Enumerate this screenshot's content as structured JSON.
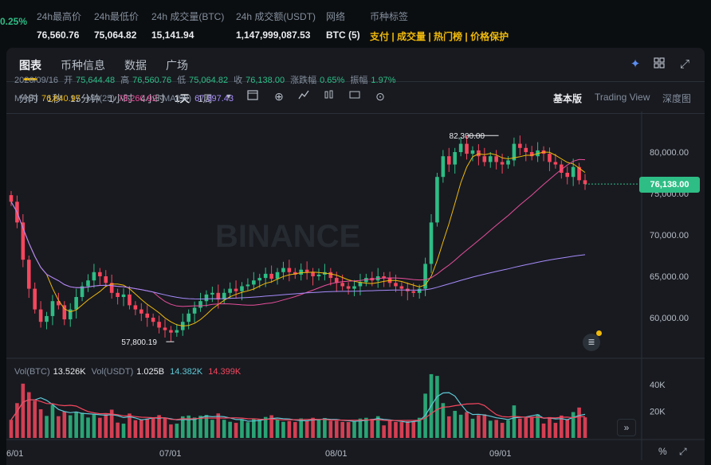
{
  "stats": [
    {
      "label": "",
      "value": "0.25%",
      "color": "green"
    },
    {
      "label": "24h最高价",
      "value": "76,560.76"
    },
    {
      "label": "24h最低价",
      "value": "75,064.82"
    },
    {
      "label": "24h 成交量(BTC)",
      "value": "15,141.94"
    },
    {
      "label": "24h 成交额(USDT)",
      "value": "1,147,999,087.53"
    },
    {
      "label": "网络",
      "value": "BTC (5)"
    },
    {
      "label": "币种标签",
      "value": "支付 | 成交量 | 热门榜 | 价格保护",
      "color": "tags"
    }
  ],
  "tabs": [
    "图表",
    "币种信息",
    "数据",
    "广场"
  ],
  "tab_icons": [
    "sparkle-icon",
    "grid-icon",
    "expand-icon"
  ],
  "timeframes": [
    "分时",
    "1秒",
    "15分钟",
    "1小时",
    "4小时",
    "1天",
    "1周"
  ],
  "active_timeframe": "1天",
  "views": [
    "基本版",
    "Trading View",
    "深度图"
  ],
  "active_view": "基本版",
  "ohlc": {
    "date": "2026/09/16",
    "open_label": "开",
    "open": "75,644.48",
    "high_label": "高",
    "high": "76,560.76",
    "low_label": "低",
    "low": "75,064.82",
    "close_label": "收",
    "close": "76,138.00",
    "change_label": "涨跌幅",
    "change": "0.65%",
    "amp_label": "振幅",
    "amp": "1.97%"
  },
  "ma": {
    "ma7_label": "MA(7)",
    "ma7": "76,840.97",
    "ma25_label": "MA(25)",
    "ma25": "78,260.92",
    "ma99_label": "MA(99)",
    "ma99": "67,697.43"
  },
  "price_axis": [
    "80,000.00",
    "75,000.00",
    "70,000.00",
    "65,000.00",
    "60,000.00"
  ],
  "current_price": "76,138.00",
  "high_marker": "82,300.00",
  "low_marker": "57,800.19",
  "watermark": "BINANCE",
  "volume": {
    "label": "Vol(BTC)",
    "btc": "13.526K",
    "usdt_label": "Vol(USDT)",
    "usdt": "1.025B",
    "ma1": "14.382K",
    "ma2": "14.399K",
    "axis": [
      "40K",
      "20K"
    ]
  },
  "dates": [
    "6/01",
    "07/01",
    "08/01",
    "09/01"
  ],
  "colors": {
    "up": "#2ebd85",
    "down": "#f6465d",
    "accent": "#f0b90b",
    "ma7": "#f0b90b",
    "ma25": "#e84e9a",
    "ma99": "#a78bfa"
  },
  "chart_data": {
    "type": "candlestick",
    "closes": [
      74000,
      71500,
      67000,
      63500,
      61000,
      59500,
      60200,
      62000,
      61500,
      59800,
      61000,
      62500,
      63800,
      64500,
      65500,
      65000,
      64200,
      63000,
      62500,
      62800,
      61500,
      61000,
      60500,
      60000,
      59500,
      58800,
      58500,
      58200,
      58500,
      59500,
      60500,
      61200,
      62000,
      62800,
      63000,
      62200,
      63000,
      63500,
      63200,
      63800,
      64000,
      64500,
      64800,
      65300,
      64700,
      65500,
      66000,
      65500,
      65200,
      65800,
      65500,
      65000,
      65200,
      65500,
      64800,
      64200,
      63800,
      63500,
      63800,
      64300,
      64800,
      64500,
      65000,
      64800,
      64200,
      63800,
      63500,
      63200,
      63000,
      63500,
      66500,
      71500,
      77000,
      79500,
      78500,
      80000,
      81000,
      79800,
      80200,
      79500,
      78800,
      79500,
      78800,
      78500,
      79000,
      81000,
      80500,
      80000,
      79500,
      80200,
      79800,
      78800,
      78500,
      77500,
      77000,
      78200,
      76600,
      76138
    ],
    "volume_axis": [
      "40K",
      "20K"
    ]
  }
}
